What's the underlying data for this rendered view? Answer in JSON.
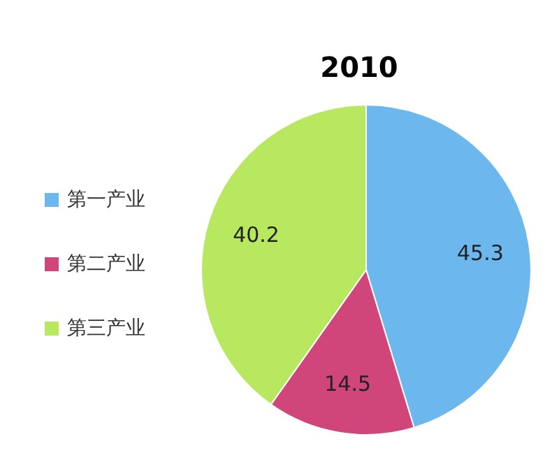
{
  "chart_data": {
    "type": "pie",
    "title": "2010",
    "categories": [
      "第一产业",
      "第二产业",
      "第三产业"
    ],
    "values": [
      45.3,
      14.5,
      40.2
    ],
    "colors": [
      "#6cb8ee",
      "#d0457a",
      "#b8e860"
    ],
    "data_labels": true,
    "legend": "left"
  }
}
